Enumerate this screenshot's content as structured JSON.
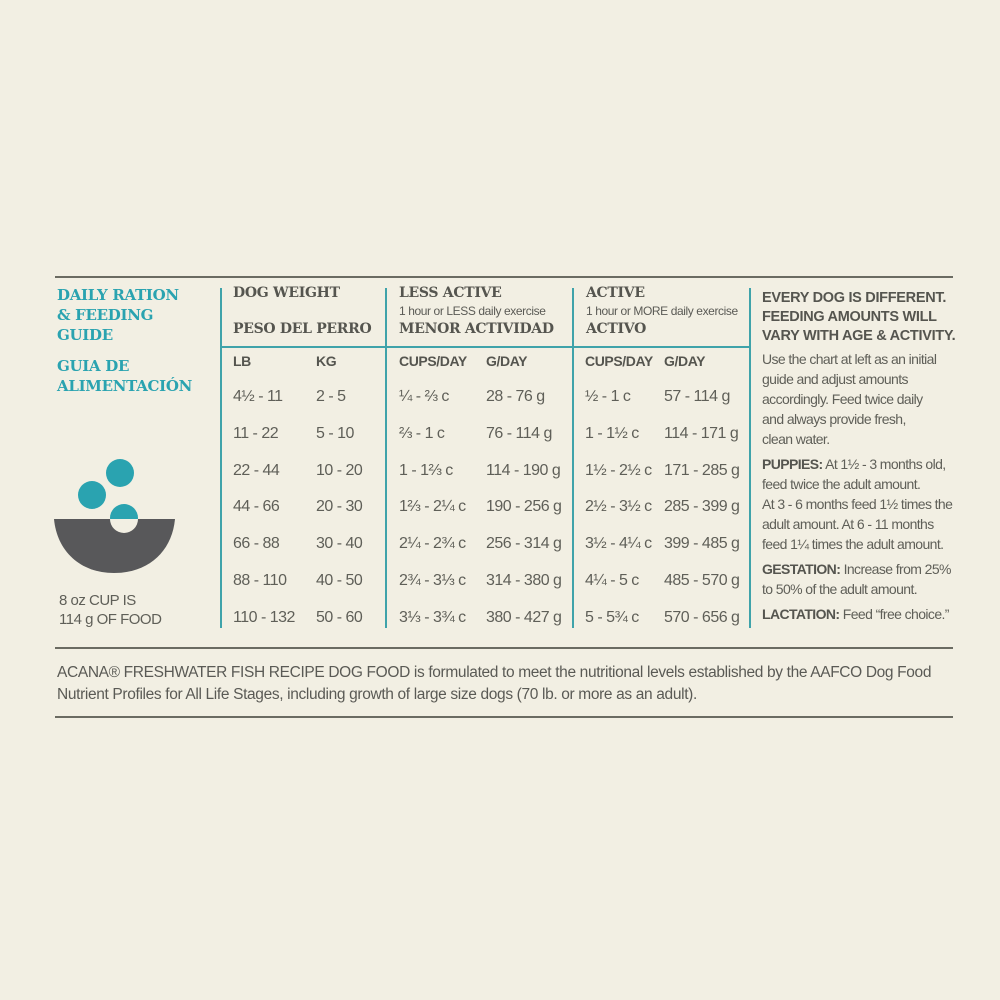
{
  "guide_title": {
    "en": [
      "DAILY RATION",
      "& FEEDING",
      "GUIDE"
    ],
    "es": [
      "GUIA DE",
      "ALIMENTACIÓN"
    ]
  },
  "cup_note": [
    "8 oz CUP IS",
    "114 g OF FOOD"
  ],
  "headers": {
    "dog_weight": "DOG WEIGHT",
    "dog_weight_es": "PESO DEL PERRO",
    "less_active": "LESS ACTIVE",
    "less_active_sub": "1 hour or LESS daily exercise",
    "less_active_es": "MENOR ACTIVIDAD",
    "active": "ACTIVE",
    "active_sub": "1 hour or MORE daily exercise",
    "active_es": "ACTIVO"
  },
  "columns": [
    "LB",
    "KG",
    "CUPS/DAY",
    "G/DAY",
    "CUPS/DAY",
    "G/DAY"
  ],
  "rows": [
    [
      "4½ - 11",
      "2 - 5",
      "¼ - ⅔ c",
      "28 - 76 g",
      "½ - 1 c",
      "57 - 114 g"
    ],
    [
      "11 - 22",
      "5 - 10",
      "⅔ - 1 c",
      "76 - 114 g",
      "1 - 1½ c",
      "114 - 171 g"
    ],
    [
      "22 - 44",
      "10 - 20",
      "1 - 1⅔ c",
      "114 - 190 g",
      "1½ - 2½ c",
      "171 - 285 g"
    ],
    [
      "44 - 66",
      "20 - 30",
      "1⅔ - 2¼ c",
      "190 - 256 g",
      "2½ - 3½ c",
      "285 - 399 g"
    ],
    [
      "66 - 88",
      "30 - 40",
      "2¼ - 2¾ c",
      "256 - 314 g",
      "3½ - 4¼ c",
      "399 - 485 g"
    ],
    [
      "88 - 110",
      "40 - 50",
      "2¾ - 3⅓ c",
      "314 - 380 g",
      "4¼ - 5 c",
      "485 - 570 g"
    ],
    [
      "110 - 132",
      "50 - 60",
      "3⅓ - 3¾ c",
      "380 - 427 g",
      "5 - 5¾ c",
      "570 - 656 g"
    ]
  ],
  "notes": {
    "heading": [
      "EVERY DOG IS DIFFERENT.",
      "FEEDING AMOUNTS WILL",
      "VARY WITH AGE & ACTIVITY."
    ],
    "intro": [
      "Use the chart at left as an initial",
      "guide and adjust amounts",
      "accordingly. Feed twice daily",
      "and always provide fresh,",
      "clean water."
    ],
    "puppies_label": "PUPPIES:",
    "puppies": [
      "At 1½ - 3 months old,",
      "feed twice the adult amount.",
      "At 3 - 6 months feed 1½ times the",
      "adult amount. At 6 - 11 months",
      "feed 1¼ times the adult amount."
    ],
    "gestation_label": "GESTATION:",
    "gestation": [
      "Increase from 25%",
      "to 50% of the adult amount."
    ],
    "lactation_label": "LACTATION:",
    "lactation": "Feed “free choice.”"
  },
  "footer": [
    "ACANA® FRESHWATER FISH RECIPE DOG FOOD is formulated to meet the nutritional levels established by the AAFCO Dog Food",
    "Nutrient Profiles for All Life Stages, including growth of large size dogs (70 lb. or more as an adult)."
  ],
  "colors": {
    "accent": "#2aa3b0",
    "bowl": "#58585a",
    "background": "#f2efe3"
  }
}
